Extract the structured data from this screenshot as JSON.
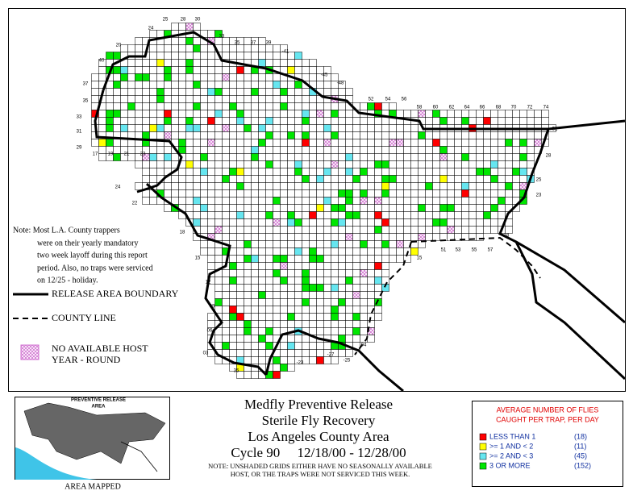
{
  "map": {
    "grid_labels": [
      "25",
      "28",
      "30",
      "33",
      "35",
      "37",
      "39",
      "-41",
      "-45",
      "-48",
      "52",
      "54",
      "56",
      "58",
      "60",
      "62",
      "64",
      "66",
      "68",
      "70",
      "72",
      "74",
      "31",
      "28",
      "25",
      "23",
      "18",
      "17",
      "19",
      "21",
      "23",
      "22",
      "24",
      "18",
      "15",
      "12",
      "09",
      "06",
      "03",
      "35",
      "-23",
      "-27",
      "-25",
      "04",
      "15",
      "51",
      "53",
      "55",
      "57",
      "40",
      "37",
      "35",
      "33",
      "31",
      "29",
      "20",
      "24"
    ],
    "note_lines": [
      "Note: Most L.A. County trappers",
      "were on their yearly mandatory",
      "two week layoff during this report",
      "period. Also, no traps were serviced",
      "on 12/25 - holiday."
    ],
    "release_boundary": "RELEASE AREA BOUNDARY",
    "county_line": "COUNTY LINE",
    "no_host_lines": [
      "NO AVAILABLE HOST",
      "YEAR - ROUND"
    ]
  },
  "inset": {
    "label_lines": [
      "PREVENTIVE RELEASE",
      "AREA"
    ],
    "caption": "AREA MAPPED"
  },
  "title_lines": [
    "Medfly Preventive Release",
    "Sterile Fly Recovery",
    "Los Angeles County Area",
    "Cycle 90     12/18/00 - 12/28/00"
  ],
  "footnote_lines": [
    "NOTE: UNSHADED GRIDS EITHER HAVE NO SEASONALLY AVAILABLE",
    "HOST, OR THE TRAPS WERE NOT SERVICED THIS WEEK."
  ],
  "key": {
    "title_lines": [
      "AVERAGE NUMBER OF FLIES",
      "CAUGHT PER TRAP, PER DAY"
    ],
    "items": [
      {
        "label": "LESS THAN 1",
        "count": "(18)",
        "color": "#ff0000"
      },
      {
        "label": ">= 1 AND < 2",
        "count": "(11)",
        "color": "#ffff00"
      },
      {
        "label": ">= 2 AND < 3",
        "count": "(45)",
        "color": "#66e6f0"
      },
      {
        "label": "3 OR MORE",
        "count": "(152)",
        "color": "#00e600"
      }
    ]
  }
}
